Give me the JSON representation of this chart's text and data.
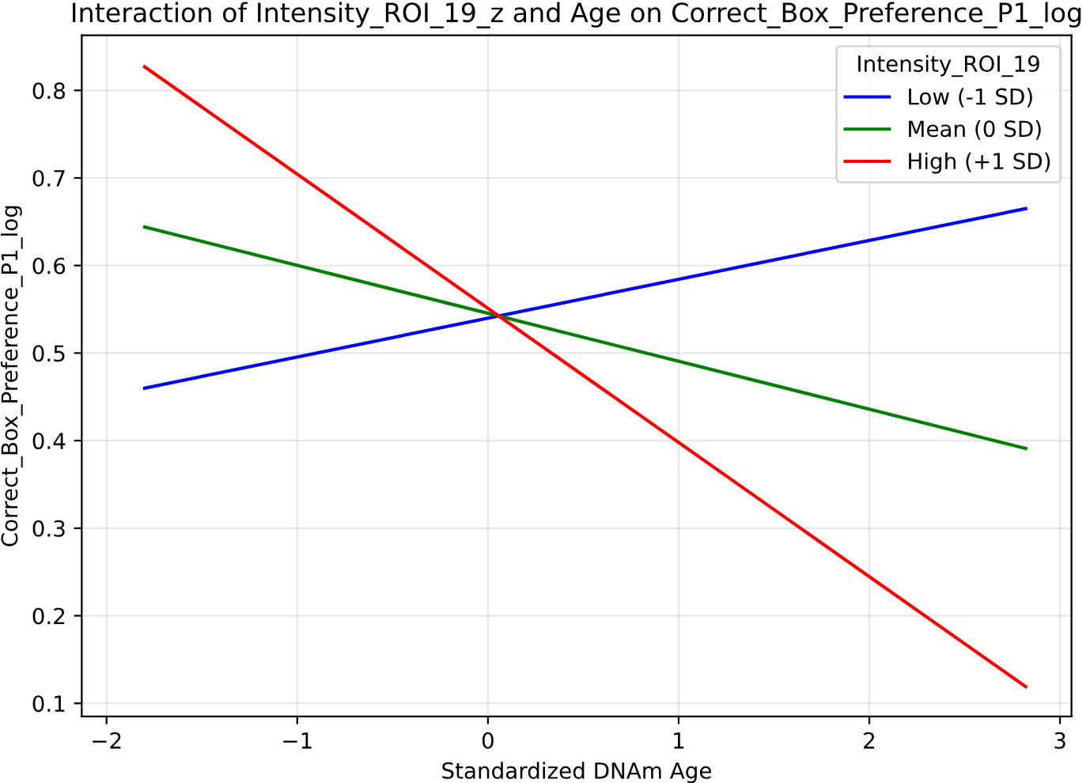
{
  "chart_data": {
    "type": "line",
    "title": "Interaction of Intensity_ROI_19_z and Age on Correct_Box_Preference_P1_log",
    "xlabel": "Standardized DNAm Age",
    "ylabel": "Correct_Box_Preference_P1_log",
    "legend_title": "Intensity_ROI_19",
    "x": [
      -1.8,
      2.82
    ],
    "series": [
      {
        "name": "Low (-1 SD)",
        "color": "#0000ff",
        "values": [
          0.46,
          0.665
        ]
      },
      {
        "name": "Mean (0 SD)",
        "color": "#008000",
        "values": [
          0.644,
          0.391
        ]
      },
      {
        "name": "High (+1 SD)",
        "color": "#ff0000",
        "values": [
          0.827,
          0.119
        ]
      }
    ],
    "xlim": [
      -2.13,
      3.06
    ],
    "xticks": [
      {
        "value": -2,
        "label": "−2"
      },
      {
        "value": -1,
        "label": "−1"
      },
      0,
      1,
      2,
      3
    ],
    "ylim": [
      0.085,
      0.863
    ],
    "yticks": [
      0.1,
      0.2,
      0.3,
      0.4,
      0.5,
      0.6,
      0.7,
      0.8
    ],
    "grid": true,
    "legend": "top right",
    "marker": "none",
    "line_style": "solid"
  }
}
